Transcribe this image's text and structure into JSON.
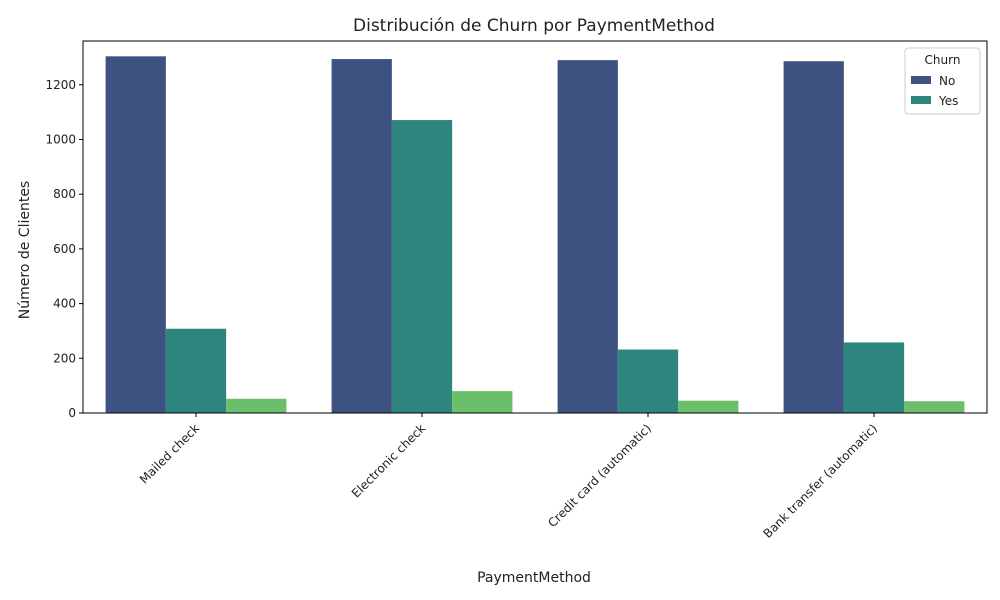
{
  "chart_data": {
    "type": "bar",
    "title": "Distribución de Churn por PaymentMethod",
    "xlabel": "PaymentMethod",
    "ylabel": "Número de Clientes",
    "categories": [
      "Mailed check",
      "Electronic check",
      "Credit card (automatic)",
      "Bank transfer (automatic)"
    ],
    "series": [
      {
        "name": "No",
        "color": "#3e5282",
        "values": [
          1304,
          1294,
          1290,
          1286
        ]
      },
      {
        "name": "Yes",
        "color": "#2e857e",
        "values": [
          308,
          1071,
          232,
          258
        ]
      },
      {
        "color": "#6bbf6b",
        "values": [
          52,
          80,
          45,
          43
        ]
      }
    ],
    "ylim": [
      0,
      1360
    ],
    "yticks": [
      0,
      200,
      400,
      600,
      800,
      1000,
      1200
    ],
    "legend": {
      "title": "Churn",
      "placement": "top-right"
    },
    "grid": false
  }
}
